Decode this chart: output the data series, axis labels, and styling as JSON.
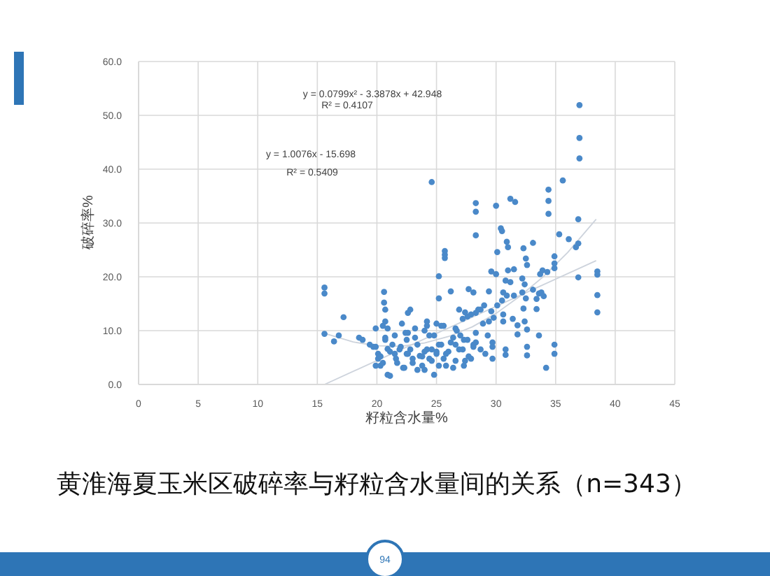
{
  "chart_data": {
    "type": "scatter",
    "title": "黄淮海夏玉米区破碎率与籽粒含水量间的关系（n=343）",
    "xlabel": "籽粒含水量%",
    "ylabel": "破碎率%",
    "annotations": [
      "y = 0.0799x² - 3.3878x + 42.948",
      "R² = 0.4107",
      "y = 1.0076x - 15.698",
      "R² = 0.5409",
      "94"
    ],
    "xlim": [
      0,
      45
    ],
    "xticks": [
      0,
      5,
      10,
      15,
      20,
      25,
      30,
      35,
      40,
      45
    ],
    "ylim": [
      0,
      60
    ],
    "yticks": [
      {
        "value": 0,
        "label": "0.0"
      },
      {
        "value": 10,
        "label": "10.0"
      },
      {
        "value": 20,
        "label": "20.0"
      },
      {
        "value": 30,
        "label": "30.0"
      },
      {
        "value": 40,
        "label": "40.0"
      },
      {
        "value": 50,
        "label": "50.0"
      },
      {
        "value": 60,
        "label": "60.0"
      }
    ],
    "grid": true,
    "marker": "circle",
    "series": [
      {
        "type": "scatter",
        "color": "#4a89c9",
        "x": [
          15.6,
          15.6,
          15.6,
          17.2,
          16.8,
          16.4,
          18.5,
          18.8,
          19.4,
          19.7,
          20.6,
          20.6,
          20.7,
          20.7,
          20.5,
          19.9,
          20.3,
          20.1,
          20.9,
          20.7,
          20.9,
          20.1,
          37.0,
          37.0,
          37.0,
          35.6,
          24.6,
          34.4,
          34.4,
          31.2,
          31.6,
          30.0,
          28.3,
          28.3,
          34.4,
          36.9,
          30.4,
          30.5,
          28.3,
          35.3,
          36.1,
          36.9,
          36.7,
          30.9,
          31.0,
          30.1,
          32.3,
          33.1,
          25.7,
          25.7,
          25.7,
          25.2,
          32.5,
          32.6,
          34.9,
          34.9,
          34.9,
          29.6,
          30.0,
          31.0,
          31.5,
          33.9,
          34.3,
          33.7,
          32.2,
          32.4,
          30.8,
          31.2,
          38.5,
          38.5,
          36.9,
          38.5,
          38.5,
          25.2,
          26.2,
          27.7,
          28.1,
          29.4,
          30.6,
          30.9,
          30.5,
          30.1,
          31.5,
          32.2,
          32.5,
          32.3,
          33.1,
          33.6,
          33.8,
          34.0,
          33.4,
          33.4,
          29.0,
          28.7,
          27.9,
          28.3,
          26.9,
          27.4,
          27.6,
          27.2,
          29.6,
          29.8,
          29.4,
          30.6,
          30.6,
          31.4,
          31.8,
          31.8,
          32.6,
          32.4,
          33.6,
          34.9,
          34.9,
          34.2,
          32.6,
          32.6,
          30.8,
          30.8,
          29.7,
          29.7,
          28.3,
          28.1,
          26.7,
          26.4,
          25.6,
          25.0,
          24.2,
          24.0,
          23.2,
          22.6,
          22.1,
          20.9,
          22.8,
          22.6,
          21.3,
          21.9,
          22.5,
          23.0,
          23.6,
          24.0,
          24.6,
          25.0,
          25.6,
          26.0,
          26.6,
          27.2,
          27.6,
          22.5,
          21.7,
          23.8,
          24.8,
          23.4,
          26.4,
          27.4,
          27.9,
          29.1,
          20.5,
          21.1,
          22.3,
          22.8,
          24.4,
          25.2,
          25.8,
          27.0,
          24.8,
          21.5,
          19.9,
          20.3,
          21.1,
          21.6,
          22.0,
          22.6,
          23.0,
          23.4,
          23.8,
          24.2,
          24.6,
          25.0,
          25.4,
          25.8,
          26.2,
          26.6,
          26.9,
          27.3,
          27.7,
          28.1,
          28.7,
          29.3,
          29.7,
          20.7,
          21.5,
          22.4,
          23.2,
          24.4,
          25.2,
          24.0,
          22.2,
          27.3,
          28.3,
          28.9,
          28.5,
          25.4,
          26.6,
          24.2,
          19.9
        ],
        "values": [
          18.0,
          16.9,
          9.4,
          12.5,
          9.1,
          8.0,
          8.7,
          8.3,
          7.4,
          7.0,
          17.2,
          15.2,
          13.9,
          11.7,
          10.9,
          3.5,
          3.5,
          5.7,
          1.8,
          8.7,
          6.6,
          4.8,
          51.9,
          45.8,
          42.0,
          37.9,
          37.6,
          36.2,
          34.1,
          34.5,
          33.9,
          33.2,
          33.7,
          32.1,
          31.7,
          30.7,
          29.0,
          28.5,
          27.7,
          27.9,
          27.0,
          26.2,
          25.5,
          26.5,
          25.5,
          24.6,
          25.3,
          26.3,
          24.8,
          24.1,
          23.5,
          20.1,
          23.4,
          22.2,
          23.8,
          22.5,
          21.6,
          21.0,
          20.5,
          21.2,
          21.4,
          21.2,
          20.9,
          20.5,
          19.7,
          18.6,
          19.3,
          19.0,
          21.0,
          20.4,
          19.9,
          16.6,
          13.4,
          16.0,
          17.3,
          17.7,
          17.1,
          17.3,
          17.1,
          16.5,
          15.6,
          14.7,
          16.5,
          17.1,
          16.0,
          14.1,
          17.6,
          16.9,
          17.1,
          16.4,
          15.9,
          14.0,
          14.7,
          13.9,
          13.0,
          13.3,
          13.9,
          13.4,
          12.6,
          12.2,
          13.6,
          12.4,
          11.7,
          13.0,
          11.7,
          12.2,
          11.0,
          9.3,
          10.2,
          11.7,
          9.1,
          7.4,
          5.7,
          3.1,
          7.0,
          5.4,
          6.5,
          5.5,
          7.8,
          4.8,
          7.8,
          7.0,
          10.0,
          8.7,
          10.9,
          11.3,
          10.9,
          10.0,
          10.4,
          9.6,
          11.3,
          10.4,
          13.9,
          13.3,
          7.4,
          6.5,
          5.7,
          4.8,
          5.3,
          6.1,
          6.5,
          5.7,
          4.8,
          6.1,
          7.4,
          6.5,
          8.3,
          8.3,
          4.0,
          3.5,
          1.8,
          2.7,
          3.1,
          4.4,
          4.8,
          5.7,
          4.0,
          1.6,
          3.1,
          6.5,
          4.8,
          7.4,
          3.5,
          9.1,
          9.1,
          5.7,
          7.0,
          5.2,
          6.1,
          4.8,
          7.0,
          5.7,
          4.0,
          7.4,
          5.2,
          6.5,
          4.4,
          6.1,
          7.4,
          5.7,
          7.8,
          4.4,
          6.5,
          8.3,
          5.2,
          7.4,
          6.5,
          9.1,
          7.0,
          8.3,
          9.1,
          9.6,
          8.7,
          9.1,
          3.5,
          2.7,
          3.1,
          3.5,
          9.6,
          11.3,
          13.9,
          10.9,
          10.4,
          11.7,
          10.4
        ]
      },
      {
        "type": "line",
        "color": "#cdd3dc",
        "marker": "none",
        "line_style": "solid",
        "x": [
          15.6,
          38.4
        ],
        "values": [
          0.0,
          23.0
        ]
      },
      {
        "type": "line",
        "color": "#cdd3dc",
        "marker": "none",
        "line_style": "solid",
        "x": [
          15.6,
          18,
          20,
          22,
          24,
          26,
          28,
          30,
          32,
          34,
          36,
          38.4
        ],
        "values": [
          9.5,
          7.9,
          7.2,
          7.1,
          7.7,
          8.9,
          10.7,
          13.2,
          16.4,
          20.1,
          24.5,
          30.7
        ]
      }
    ]
  }
}
